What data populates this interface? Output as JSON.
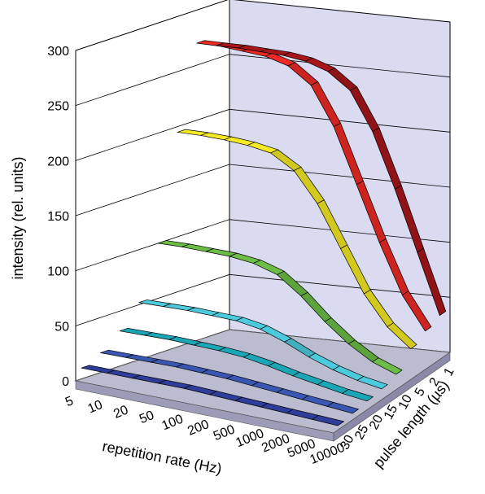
{
  "chart_data": {
    "type": "ribbon3d",
    "title": "",
    "ylabel": "intensity (rel. units)",
    "xlabel": "repetition rate (Hz)",
    "zlabel": "pulse length (µs)",
    "ylim": [
      0,
      300
    ],
    "y_ticks": [
      "0",
      "50",
      "100",
      "150",
      "200",
      "250",
      "300"
    ],
    "categories": [
      "5",
      "10",
      "20",
      "50",
      "100",
      "200",
      "500",
      "1000",
      "2000",
      "5000",
      "10000"
    ],
    "z_ticks": [
      "1",
      "2",
      "5",
      "10",
      "15",
      "20",
      "25",
      "30"
    ],
    "grid": true,
    "series": [
      {
        "pulse": "1",
        "color": "#a8161c",
        "values": [
          262,
          262,
          261,
          260,
          257,
          250,
          235,
          200,
          150,
          95,
          40
        ]
      },
      {
        "pulse": "2",
        "color": "#ee2a24",
        "values": [
          270,
          270,
          268,
          266,
          260,
          245,
          210,
          160,
          110,
          65,
          35
        ]
      },
      {
        "pulse": "5",
        "color": "#f5ea23",
        "values": [
          195,
          195,
          194,
          192,
          188,
          175,
          148,
          110,
          72,
          45,
          28
        ]
      },
      {
        "pulse": "10",
        "color": "#6cbd45",
        "values": [
          100,
          100,
          99,
          98,
          95,
          88,
          72,
          52,
          35,
          22,
          14
        ]
      },
      {
        "pulse": "15",
        "color": "#4ccbdc",
        "values": [
          52,
          52,
          52,
          51,
          50,
          46,
          38,
          28,
          20,
          14,
          10
        ]
      },
      {
        "pulse": "20",
        "color": "#1ba6b5",
        "values": [
          32,
          32,
          32,
          31,
          30,
          28,
          24,
          19,
          15,
          11,
          8
        ]
      },
      {
        "pulse": "25",
        "color": "#3a56b3",
        "values": [
          18,
          18,
          18,
          18,
          17,
          16,
          14,
          12,
          10,
          8,
          6
        ]
      },
      {
        "pulse": "30",
        "color": "#2e3c9a",
        "values": [
          10,
          10,
          10,
          10,
          10,
          9,
          8,
          7,
          6,
          5,
          4
        ]
      }
    ]
  }
}
